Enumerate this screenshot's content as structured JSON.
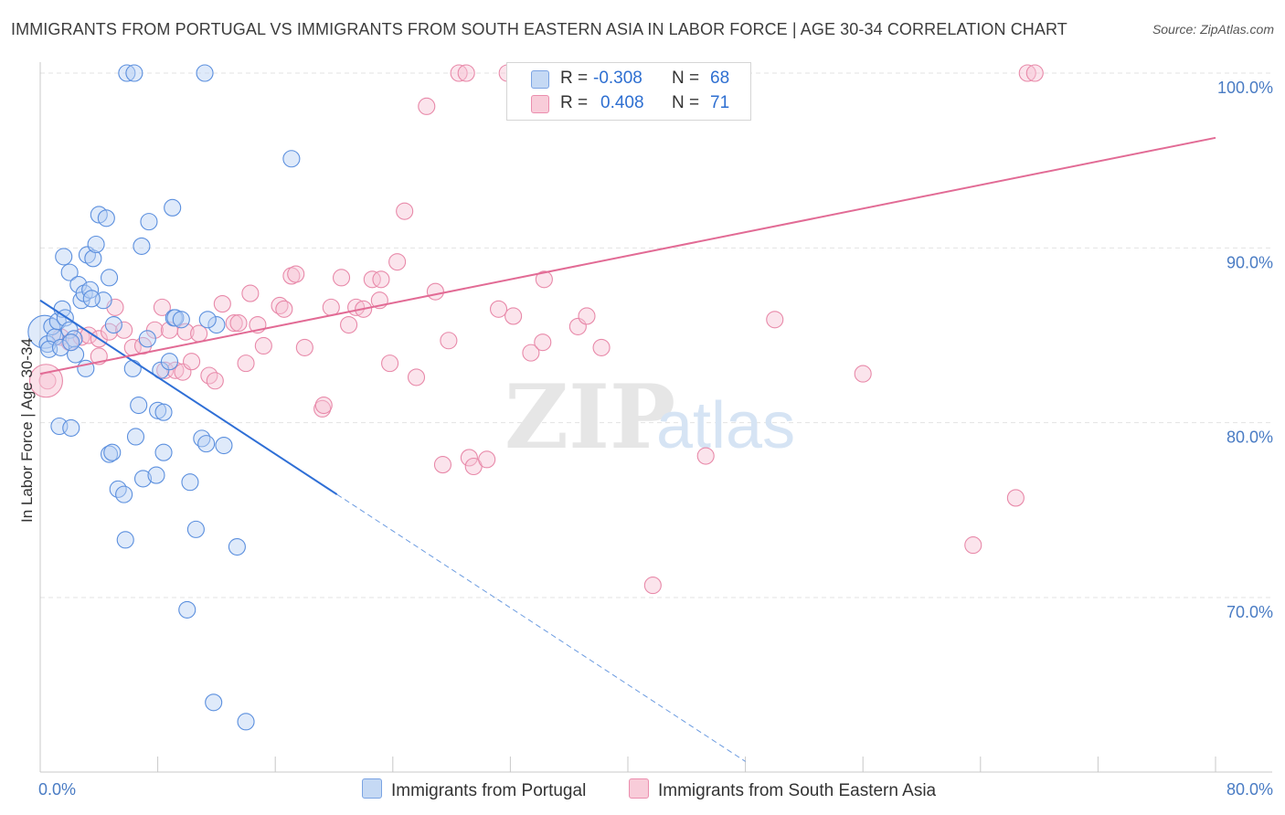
{
  "title": "IMMIGRANTS FROM PORTUGAL VS IMMIGRANTS FROM SOUTH EASTERN ASIA IN LABOR FORCE | AGE 30-34 CORRELATION CHART",
  "source": "Source: ZipAtlas.com",
  "legend": {
    "r_label": "R =",
    "n_label": "N =",
    "blue": {
      "r": "-0.308",
      "n": "68"
    },
    "pink": {
      "r": "0.408",
      "n": "71"
    }
  },
  "colors": {
    "blue": "#5b8fde",
    "blue_fill": "#a9c6f0",
    "pink": "#e8709a",
    "pink_fill": "#f5b8cc",
    "axis_text": "#4a7cc4"
  },
  "chart_data": {
    "type": "scatter",
    "title": "IMMIGRANTS FROM PORTUGAL VS IMMIGRANTS FROM SOUTH EASTERN ASIA IN LABOR FORCE | AGE 30-34 CORRELATION CHART",
    "xlabel": "",
    "ylabel": "In Labor Force | Age 30-34",
    "xlim": [
      0,
      80
    ],
    "ylim": [
      62,
      101
    ],
    "x_tick_labels": [
      "0.0%",
      "80.0%"
    ],
    "y_ticks": [
      70,
      80,
      90,
      100
    ],
    "y_tick_labels": [
      "70.0%",
      "80.0%",
      "90.0%",
      "100.0%"
    ],
    "series": [
      {
        "name": "Immigrants from Portugal",
        "color": "#5b8fde",
        "trend": {
          "x0": 0,
          "y0": 87.0,
          "x1": 20.2,
          "y1": 75.9,
          "dash_x1": 48.0
        },
        "points": [
          [
            0.3,
            85.2
          ],
          [
            0.5,
            84.5
          ],
          [
            0.8,
            85.5
          ],
          [
            1.0,
            84.9
          ],
          [
            1.2,
            85.8
          ],
          [
            0.6,
            84.2
          ],
          [
            1.5,
            86.5
          ],
          [
            1.7,
            86.0
          ],
          [
            2.0,
            85.3
          ],
          [
            2.3,
            84.8
          ],
          [
            1.6,
            89.5
          ],
          [
            2.0,
            88.6
          ],
          [
            2.6,
            87.9
          ],
          [
            2.8,
            87.0
          ],
          [
            3.0,
            87.4
          ],
          [
            3.2,
            89.6
          ],
          [
            3.4,
            87.6
          ],
          [
            3.6,
            89.4
          ],
          [
            3.8,
            90.2
          ],
          [
            4.3,
            87.0
          ],
          [
            4.7,
            88.3
          ],
          [
            4.0,
            91.9
          ],
          [
            4.5,
            91.7
          ],
          [
            2.4,
            83.9
          ],
          [
            3.1,
            83.1
          ],
          [
            1.4,
            84.3
          ],
          [
            2.1,
            84.6
          ],
          [
            1.3,
            79.8
          ],
          [
            2.1,
            79.7
          ],
          [
            4.7,
            78.2
          ],
          [
            4.9,
            78.3
          ],
          [
            5.3,
            76.2
          ],
          [
            5.7,
            75.9
          ],
          [
            5.8,
            73.3
          ],
          [
            6.5,
            79.2
          ],
          [
            7.0,
            76.8
          ],
          [
            7.9,
            77.0
          ],
          [
            6.3,
            83.1
          ],
          [
            6.7,
            81.0
          ],
          [
            7.3,
            84.8
          ],
          [
            8.2,
            83.0
          ],
          [
            8.0,
            80.7
          ],
          [
            8.4,
            80.6
          ],
          [
            8.4,
            78.3
          ],
          [
            9.1,
            86.0
          ],
          [
            9.2,
            86.0
          ],
          [
            9.0,
            92.3
          ],
          [
            7.4,
            91.5
          ],
          [
            6.9,
            90.1
          ],
          [
            10.2,
            76.6
          ],
          [
            10.6,
            73.9
          ],
          [
            11.0,
            79.1
          ],
          [
            11.3,
            78.8
          ],
          [
            12.5,
            78.7
          ],
          [
            12.0,
            85.6
          ],
          [
            11.4,
            85.9
          ],
          [
            10.0,
            69.3
          ],
          [
            11.8,
            64.0
          ],
          [
            13.4,
            72.9
          ],
          [
            14.0,
            62.9
          ],
          [
            17.1,
            95.1
          ],
          [
            5.9,
            100
          ],
          [
            6.4,
            100
          ],
          [
            11.2,
            100
          ],
          [
            5.0,
            85.6
          ],
          [
            9.6,
            85.9
          ],
          [
            3.5,
            87.1
          ],
          [
            8.8,
            83.5
          ]
        ],
        "sizes": {
          "0": 18
        }
      },
      {
        "name": "Immigrants from South Eastern Asia",
        "color": "#e8709a",
        "trend": {
          "x0": 0,
          "y0": 82.8,
          "x1": 80,
          "y1": 96.3
        },
        "points": [
          [
            0.5,
            82.4
          ],
          [
            1.4,
            84.9
          ],
          [
            2.0,
            84.6
          ],
          [
            2.8,
            84.9
          ],
          [
            3.3,
            85.0
          ],
          [
            4.0,
            84.8
          ],
          [
            4.7,
            85.2
          ],
          [
            4.0,
            83.8
          ],
          [
            5.1,
            86.6
          ],
          [
            5.7,
            85.3
          ],
          [
            6.3,
            84.3
          ],
          [
            7.0,
            84.4
          ],
          [
            7.8,
            85.3
          ],
          [
            8.3,
            86.6
          ],
          [
            8.8,
            85.3
          ],
          [
            8.5,
            83.0
          ],
          [
            9.2,
            83.0
          ],
          [
            9.7,
            82.9
          ],
          [
            9.9,
            85.2
          ],
          [
            10.3,
            83.5
          ],
          [
            10.8,
            85.1
          ],
          [
            11.5,
            82.7
          ],
          [
            11.9,
            82.4
          ],
          [
            12.4,
            86.8
          ],
          [
            13.2,
            85.7
          ],
          [
            13.5,
            85.7
          ],
          [
            14.0,
            83.4
          ],
          [
            14.3,
            87.4
          ],
          [
            14.8,
            85.6
          ],
          [
            15.2,
            84.4
          ],
          [
            16.3,
            86.7
          ],
          [
            16.6,
            86.5
          ],
          [
            17.1,
            88.4
          ],
          [
            17.4,
            88.5
          ],
          [
            18.0,
            84.3
          ],
          [
            19.2,
            80.8
          ],
          [
            19.3,
            81.0
          ],
          [
            19.8,
            86.6
          ],
          [
            20.5,
            88.3
          ],
          [
            21.0,
            85.6
          ],
          [
            21.5,
            86.6
          ],
          [
            22.0,
            86.5
          ],
          [
            22.6,
            88.2
          ],
          [
            23.1,
            87.0
          ],
          [
            23.2,
            88.2
          ],
          [
            23.8,
            83.4
          ],
          [
            24.3,
            89.2
          ],
          [
            24.8,
            92.1
          ],
          [
            25.6,
            82.6
          ],
          [
            26.3,
            98.1
          ],
          [
            26.9,
            87.5
          ],
          [
            27.4,
            77.6
          ],
          [
            27.8,
            84.7
          ],
          [
            29.2,
            78.0
          ],
          [
            29.5,
            77.5
          ],
          [
            30.4,
            77.9
          ],
          [
            31.2,
            86.5
          ],
          [
            32.2,
            86.1
          ],
          [
            33.4,
            84.0
          ],
          [
            34.2,
            84.6
          ],
          [
            34.3,
            88.2
          ],
          [
            36.6,
            85.5
          ],
          [
            37.2,
            86.1
          ],
          [
            37.9,
            98.2
          ],
          [
            38.2,
            84.3
          ],
          [
            41.7,
            70.7
          ],
          [
            45.3,
            78.1
          ],
          [
            50.0,
            85.9
          ],
          [
            56.0,
            82.8
          ],
          [
            63.5,
            73.0
          ],
          [
            66.4,
            75.7
          ]
        ],
        "points_top": [
          [
            28.5,
            100
          ],
          [
            29.0,
            100
          ],
          [
            31.8,
            100
          ],
          [
            35.3,
            100
          ],
          [
            67.2,
            100
          ],
          [
            67.7,
            100
          ]
        ]
      }
    ]
  },
  "watermark": {
    "zip": "ZIP",
    "atlas": "atlas"
  }
}
